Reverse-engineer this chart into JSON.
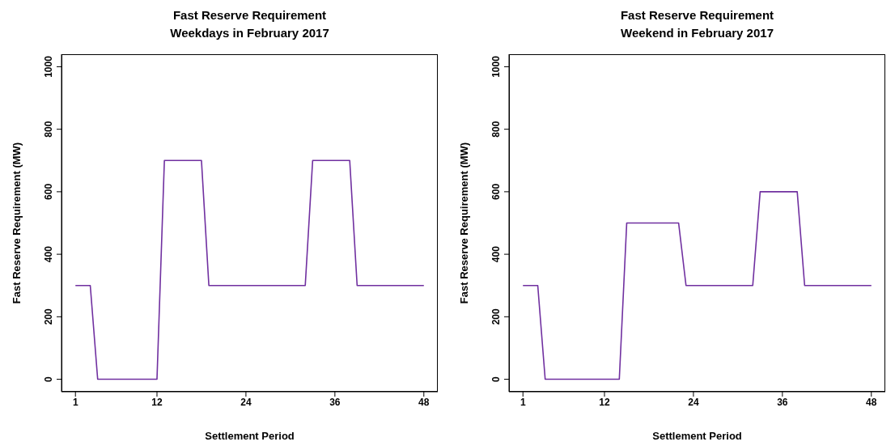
{
  "chart_data": [
    {
      "type": "line",
      "title": "Fast Reserve Requirement",
      "subtitle": "Weekdays in February 2017",
      "xlabel": "Settlement Period",
      "ylabel": "Fast Reserve Requirement (MW)",
      "x": [
        1,
        2,
        3,
        4,
        5,
        6,
        7,
        8,
        9,
        10,
        11,
        12,
        13,
        14,
        15,
        16,
        17,
        18,
        19,
        20,
        21,
        22,
        23,
        24,
        25,
        26,
        27,
        28,
        29,
        30,
        31,
        32,
        33,
        34,
        35,
        36,
        37,
        38,
        39,
        40,
        41,
        42,
        43,
        44,
        45,
        46,
        47,
        48
      ],
      "series": [
        {
          "color": "#7030a0",
          "values": [
            300,
            300,
            300,
            0,
            0,
            0,
            0,
            0,
            0,
            0,
            0,
            0,
            700,
            700,
            700,
            700,
            700,
            700,
            300,
            300,
            300,
            300,
            300,
            300,
            300,
            300,
            300,
            300,
            300,
            300,
            300,
            300,
            700,
            700,
            700,
            700,
            700,
            700,
            300,
            300,
            300,
            300,
            300,
            300,
            300,
            300,
            300,
            300
          ]
        }
      ],
      "xlim": [
        -0.88,
        49.88
      ],
      "xticks": [
        1,
        12,
        24,
        36,
        48
      ],
      "ylim": [
        -40,
        1040
      ],
      "yticks": [
        0,
        200,
        400,
        600,
        800,
        1000
      ],
      "legend": false,
      "marker": "none"
    },
    {
      "type": "line",
      "title": "Fast Reserve Requirement",
      "subtitle": "Weekend in February 2017",
      "xlabel": "Settlement Period",
      "ylabel": "Fast Reserve Requirement (MW)",
      "x": [
        1,
        2,
        3,
        4,
        5,
        6,
        7,
        8,
        9,
        10,
        11,
        12,
        13,
        14,
        15,
        16,
        17,
        18,
        19,
        20,
        21,
        22,
        23,
        24,
        25,
        26,
        27,
        28,
        29,
        30,
        31,
        32,
        33,
        34,
        35,
        36,
        37,
        38,
        39,
        40,
        41,
        42,
        43,
        44,
        45,
        46,
        47,
        48
      ],
      "series": [
        {
          "color": "#7030a0",
          "values": [
            300,
            300,
            300,
            0,
            0,
            0,
            0,
            0,
            0,
            0,
            0,
            0,
            0,
            0,
            500,
            500,
            500,
            500,
            500,
            500,
            500,
            500,
            300,
            300,
            300,
            300,
            300,
            300,
            300,
            300,
            300,
            300,
            600,
            600,
            600,
            600,
            600,
            600,
            300,
            300,
            300,
            300,
            300,
            300,
            300,
            300,
            300,
            300
          ]
        }
      ],
      "xlim": [
        -0.88,
        49.88
      ],
      "xticks": [
        1,
        12,
        24,
        36,
        48
      ],
      "ylim": [
        -40,
        1040
      ],
      "yticks": [
        0,
        200,
        400,
        600,
        800,
        1000
      ],
      "legend": false,
      "marker": "none"
    }
  ]
}
